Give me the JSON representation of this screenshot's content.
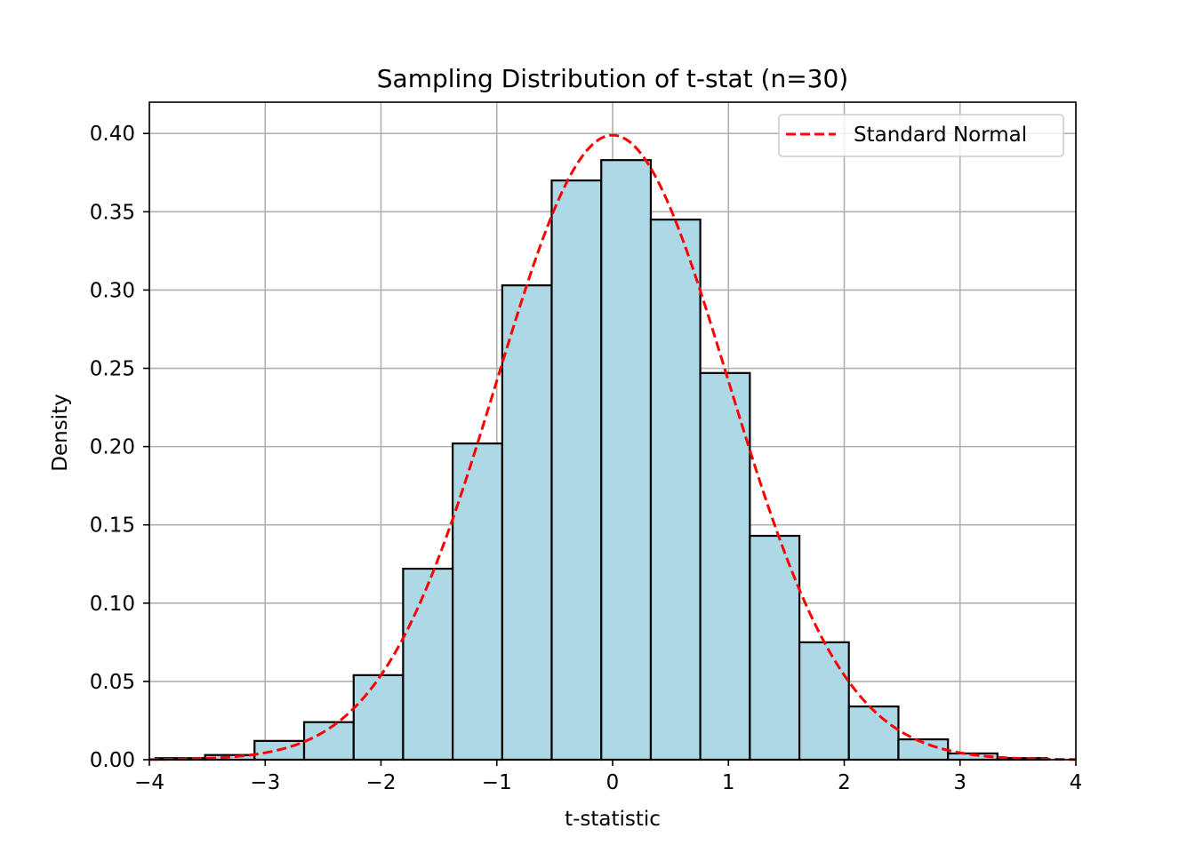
{
  "chart_data": {
    "type": "bar",
    "title": "Sampling Distribution of t-stat (n=30)",
    "xlabel": "t-statistic",
    "ylabel": "Density",
    "xlim": [
      -4,
      4
    ],
    "ylim": [
      0,
      0.42
    ],
    "xticks": [
      -4,
      -3,
      -2,
      -1,
      0,
      1,
      2,
      3,
      4
    ],
    "xtick_labels": [
      "−4",
      "−3",
      "−2",
      "−1",
      "0",
      "1",
      "2",
      "3",
      "4"
    ],
    "yticks": [
      0,
      0.05,
      0.1,
      0.15,
      0.2,
      0.25,
      0.3,
      0.35,
      0.4
    ],
    "ytick_labels": [
      "0.00",
      "0.05",
      "0.10",
      "0.15",
      "0.20",
      "0.25",
      "0.30",
      "0.35",
      "0.40"
    ],
    "grid": true,
    "histogram": {
      "bin_edges": [
        -3.947,
        -3.519,
        -3.092,
        -2.664,
        -2.236,
        -1.809,
        -1.381,
        -0.953,
        -0.526,
        -0.098,
        0.33,
        0.757,
        1.185,
        1.613,
        2.04,
        2.468,
        2.896,
        3.323,
        3.751
      ],
      "densities": [
        0.001,
        0.003,
        0.012,
        0.024,
        0.054,
        0.122,
        0.202,
        0.303,
        0.37,
        0.383,
        0.345,
        0.247,
        0.143,
        0.075,
        0.034,
        0.013,
        0.004,
        0.001
      ],
      "fill_color": "#add8e6",
      "edge_color": "#000000"
    },
    "series": [
      {
        "name": "Standard Normal",
        "type": "line",
        "style": "dashed",
        "color": "#ff0000",
        "function": "standard normal pdf",
        "x_range": [
          -4,
          4
        ]
      }
    ],
    "legend": {
      "position": "top-right",
      "entries": [
        "Standard Normal"
      ]
    }
  }
}
